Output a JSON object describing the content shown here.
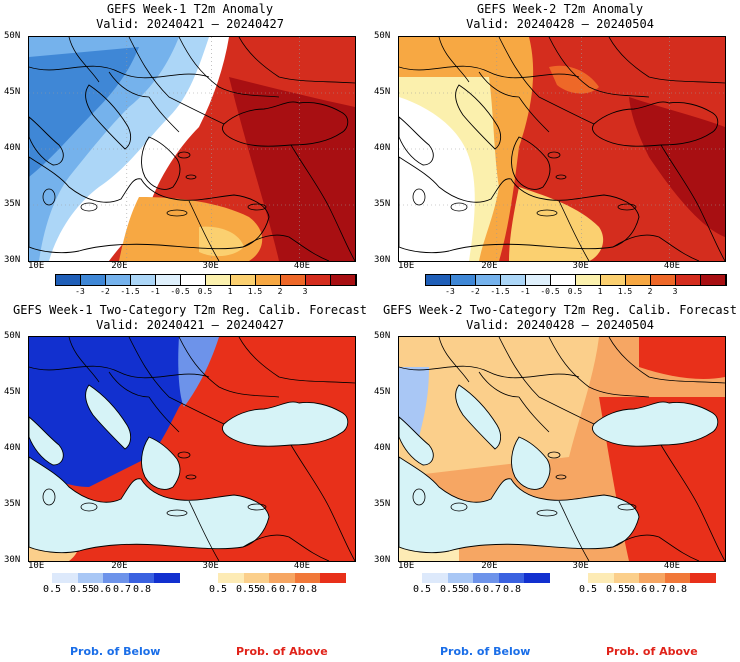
{
  "panels": [
    {
      "title_line1": "GEFS Week-1 T2m Anomaly",
      "title_line2": "Valid: 20240421 – 20240427",
      "lat_labels": [
        "50N",
        "45N",
        "40N",
        "35N",
        "30N"
      ],
      "lon_labels": [
        "10E",
        "20E",
        "30E",
        "40E"
      ]
    },
    {
      "title_line1": "GEFS Week-2 T2m Anomaly",
      "title_line2": "Valid: 20240428 – 20240504",
      "lat_labels": [
        "50N",
        "45N",
        "40N",
        "35N",
        "30N"
      ],
      "lon_labels": [
        "10E",
        "20E",
        "30E",
        "40E"
      ]
    },
    {
      "title_line1": "GEFS Week-1 Two-Category T2m Reg. Calib. Forecast",
      "title_line2": "Valid: 20240421 – 20240427",
      "lat_labels": [
        "50N",
        "45N",
        "40N",
        "35N",
        "30N"
      ],
      "lon_labels": [
        "10E",
        "20E",
        "30E",
        "40E"
      ]
    },
    {
      "title_line1": "GEFS Week-2 Two-Category T2m Reg. Calib. Forecast",
      "title_line2": "Valid: 20240428 – 20240504",
      "lat_labels": [
        "50N",
        "45N",
        "40N",
        "35N",
        "30N"
      ],
      "lon_labels": [
        "10E",
        "20E",
        "30E",
        "40E"
      ]
    }
  ],
  "anomaly_colorbar": {
    "labels": [
      "-3",
      "-2",
      "-1.5",
      "-1",
      "-0.5",
      "0.5",
      "1",
      "1.5",
      "2",
      "3"
    ],
    "colors": [
      "#1f5fb8",
      "#3f87d6",
      "#75b2ec",
      "#acd6f7",
      "#dff0fc",
      "#ffffff",
      "#fbf0ad",
      "#fbd070",
      "#f7a843",
      "#ee6828",
      "#d42d1e",
      "#a80f12"
    ]
  },
  "prob_colorbar": {
    "below_labels": [
      "0.5",
      "0.55",
      "0.6",
      "0.7",
      "0.8"
    ],
    "below_colors": [
      "#dde9fb",
      "#a9c7f5",
      "#6d93ea",
      "#3a61e0",
      "#1230cf"
    ],
    "above_labels": [
      "0.5",
      "0.55",
      "0.6",
      "0.7",
      "0.8"
    ],
    "above_colors": [
      "#fdebb5",
      "#fbcf8b",
      "#f6a663",
      "#f17839",
      "#e8301a"
    ],
    "below_caption": "Prob. of Below",
    "above_caption": "Prob. of Above",
    "below_caption_color": "#1a6ee8",
    "above_caption_color": "#e0231a"
  },
  "colors": {
    "sea": "#d6f3f7",
    "coast": "#000000"
  }
}
